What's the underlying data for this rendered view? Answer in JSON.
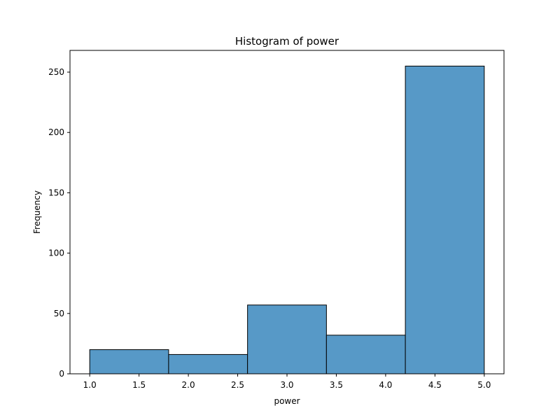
{
  "chart_data": {
    "type": "bar",
    "title": "Histogram of power",
    "xlabel": "power",
    "ylabel": "Frequency",
    "bins": [
      {
        "start": 1.0,
        "end": 1.8,
        "count": 20
      },
      {
        "start": 1.8,
        "end": 2.6,
        "count": 16
      },
      {
        "start": 2.6,
        "end": 3.4,
        "count": 57
      },
      {
        "start": 3.4,
        "end": 4.2,
        "count": 32
      },
      {
        "start": 4.2,
        "end": 5.0,
        "count": 255
      }
    ],
    "xlim": [
      0.8,
      5.2
    ],
    "ylim": [
      0,
      268
    ],
    "xticks": [
      "1.0",
      "1.5",
      "2.0",
      "2.5",
      "3.0",
      "3.5",
      "4.0",
      "4.5",
      "5.0"
    ],
    "yticks": [
      "0",
      "50",
      "100",
      "150",
      "200",
      "250"
    ],
    "bar_color": "#5799c7",
    "edge_color": "#000000",
    "grid": false
  }
}
